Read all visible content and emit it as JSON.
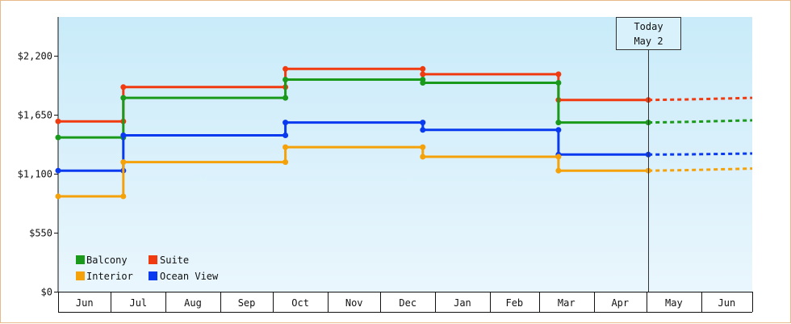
{
  "chart_data": {
    "type": "line",
    "step": true,
    "title": "",
    "xlabel": "",
    "ylabel": "",
    "ylim": [
      0,
      2565
    ],
    "y_ticks": [
      {
        "value": 0,
        "label": "$0"
      },
      {
        "value": 550,
        "label": "$550"
      },
      {
        "value": 1100,
        "label": "$1,100"
      },
      {
        "value": 1650,
        "label": "$1,650"
      },
      {
        "value": 2200,
        "label": "$2,200"
      }
    ],
    "x_axis_months": [
      "Jun",
      "Jul",
      "Aug",
      "Sep",
      "Oct",
      "Nov",
      "Dec",
      "Jan",
      "Feb",
      "Mar",
      "Apr",
      "May",
      "Jun"
    ],
    "x_range": [
      "2018-06-01",
      "2019-06-30"
    ],
    "grid": false,
    "background": "gradient light blue (top) to pale blue (bottom)",
    "today_marker": {
      "line1": "Today",
      "line2": "May 2",
      "date": "2019-05-02"
    },
    "legend": {
      "placement": "bottom-left",
      "entries": [
        {
          "name": "Balcony",
          "color": "#1a9a1a"
        },
        {
          "name": "Suite",
          "color": "#f03a10"
        },
        {
          "name": "Interior",
          "color": "#f5a20a"
        },
        {
          "name": "Ocean View",
          "color": "#0a3af0"
        }
      ]
    },
    "series": [
      {
        "name": "Suite",
        "color": "#f03a10",
        "points": [
          {
            "x": "2018-06-01",
            "y": 1590
          },
          {
            "x": "2018-07-08",
            "y": 1590
          },
          {
            "x": "2018-07-08",
            "y": 1910
          },
          {
            "x": "2018-10-08",
            "y": 1910
          },
          {
            "x": "2018-10-08",
            "y": 2080
          },
          {
            "x": "2018-12-25",
            "y": 2080
          },
          {
            "x": "2018-12-25",
            "y": 2030
          },
          {
            "x": "2019-03-12",
            "y": 2030
          },
          {
            "x": "2019-03-12",
            "y": 1790
          },
          {
            "x": "2019-05-02",
            "y": 1790
          }
        ],
        "projection": [
          {
            "x": "2019-05-02",
            "y": 1790
          },
          {
            "x": "2019-05-23",
            "y": 1795
          },
          {
            "x": "2019-06-30",
            "y": 1810
          }
        ]
      },
      {
        "name": "Balcony",
        "color": "#1a9a1a",
        "points": [
          {
            "x": "2018-06-01",
            "y": 1440
          },
          {
            "x": "2018-07-08",
            "y": 1440
          },
          {
            "x": "2018-07-08",
            "y": 1810
          },
          {
            "x": "2018-10-08",
            "y": 1810
          },
          {
            "x": "2018-10-08",
            "y": 1980
          },
          {
            "x": "2018-12-25",
            "y": 1980
          },
          {
            "x": "2018-12-25",
            "y": 1950
          },
          {
            "x": "2019-03-12",
            "y": 1950
          },
          {
            "x": "2019-03-12",
            "y": 1580
          },
          {
            "x": "2019-05-02",
            "y": 1580
          }
        ],
        "projection": [
          {
            "x": "2019-05-02",
            "y": 1580
          },
          {
            "x": "2019-05-23",
            "y": 1585
          },
          {
            "x": "2019-06-30",
            "y": 1600
          }
        ]
      },
      {
        "name": "Ocean View",
        "color": "#0a3af0",
        "points": [
          {
            "x": "2018-06-01",
            "y": 1130
          },
          {
            "x": "2018-07-08",
            "y": 1130
          },
          {
            "x": "2018-07-08",
            "y": 1460
          },
          {
            "x": "2018-10-08",
            "y": 1460
          },
          {
            "x": "2018-10-08",
            "y": 1580
          },
          {
            "x": "2018-12-25",
            "y": 1580
          },
          {
            "x": "2018-12-25",
            "y": 1510
          },
          {
            "x": "2019-03-12",
            "y": 1510
          },
          {
            "x": "2019-03-12",
            "y": 1280
          },
          {
            "x": "2019-05-02",
            "y": 1280
          }
        ],
        "projection": [
          {
            "x": "2019-05-02",
            "y": 1280
          },
          {
            "x": "2019-05-23",
            "y": 1282
          },
          {
            "x": "2019-06-30",
            "y": 1290
          }
        ]
      },
      {
        "name": "Interior",
        "color": "#f5a20a",
        "points": [
          {
            "x": "2018-06-01",
            "y": 890
          },
          {
            "x": "2018-07-08",
            "y": 890
          },
          {
            "x": "2018-07-08",
            "y": 1210
          },
          {
            "x": "2018-10-08",
            "y": 1210
          },
          {
            "x": "2018-10-08",
            "y": 1350
          },
          {
            "x": "2018-12-25",
            "y": 1350
          },
          {
            "x": "2018-12-25",
            "y": 1260
          },
          {
            "x": "2019-03-12",
            "y": 1260
          },
          {
            "x": "2019-03-12",
            "y": 1130
          },
          {
            "x": "2019-05-02",
            "y": 1130
          }
        ],
        "projection": [
          {
            "x": "2019-05-02",
            "y": 1130
          },
          {
            "x": "2019-05-23",
            "y": 1135
          },
          {
            "x": "2019-06-30",
            "y": 1150
          }
        ]
      }
    ]
  }
}
